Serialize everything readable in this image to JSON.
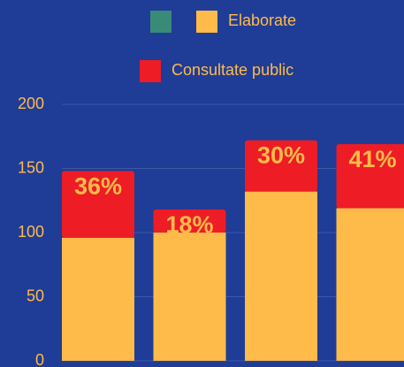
{
  "chart_data": {
    "type": "stacked_bar",
    "categories": [
      null,
      null,
      null,
      null
    ],
    "series": [
      {
        "name": null,
        "color": "#3a8a78",
        "values": [
          null,
          null,
          null,
          null
        ]
      },
      {
        "name": "Elaborate",
        "color": "#ffbb4a",
        "values": [
          96,
          100,
          132,
          119
        ]
      },
      {
        "name": "Consultate public",
        "color": "#ee1c25",
        "values": [
          52,
          18,
          40,
          50
        ]
      }
    ],
    "shares": {
      "values": [
        36,
        18,
        30,
        41
      ],
      "value_labels": [
        "36%",
        "18%",
        "30%",
        "41%"
      ]
    },
    "ylim": [
      0,
      200
    ],
    "yticks": [
      0,
      50,
      100,
      150,
      200
    ],
    "grid": true
  }
}
